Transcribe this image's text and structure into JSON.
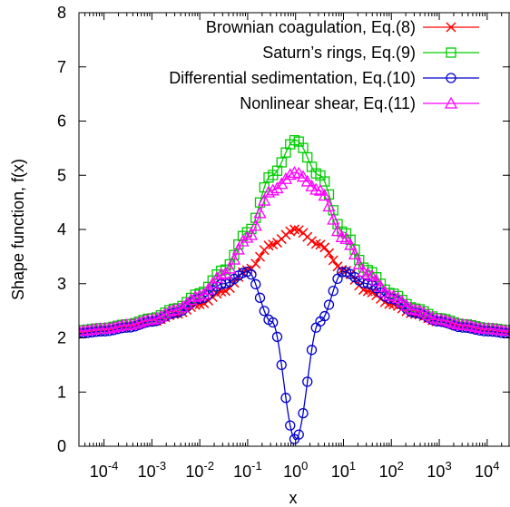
{
  "chart_data": {
    "type": "line",
    "xscale": "log",
    "xlabel": "x",
    "ylabel": "Shape function, f(x)",
    "xlim": [
      3e-05,
      30000
    ],
    "ylim": [
      0,
      8
    ],
    "x_ticks": [
      {
        "base": "10",
        "exp": "-4",
        "value": 0.0001
      },
      {
        "base": "10",
        "exp": "-3",
        "value": 0.001
      },
      {
        "base": "10",
        "exp": "-2",
        "value": 0.01
      },
      {
        "base": "10",
        "exp": "-1",
        "value": 0.1
      },
      {
        "base": "10",
        "exp": "0",
        "value": 1
      },
      {
        "base": "10",
        "exp": "1",
        "value": 10
      },
      {
        "base": "10",
        "exp": "2",
        "value": 100
      },
      {
        "base": "10",
        "exp": "3",
        "value": 1000
      },
      {
        "base": "10",
        "exp": "4",
        "value": 10000
      }
    ],
    "y_ticks": [
      "0",
      "1",
      "2",
      "3",
      "4",
      "5",
      "6",
      "7",
      "8"
    ],
    "legend_position": "top-right",
    "x": [
      3e-05,
      0.0001,
      0.00032,
      0.001,
      0.00316,
      0.01,
      0.03162,
      0.1,
      0.31623,
      1.0,
      3.16228,
      10.0,
      31.6228,
      100.0,
      316.228,
      1000.0,
      3162.28,
      10000.0,
      30000.0
    ],
    "series": [
      {
        "name": "Brownian coagulation, Eq.(8)",
        "color": "#ff0000",
        "marker": "x",
        "values": [
          2.12,
          2.16,
          2.22,
          2.3,
          2.44,
          2.62,
          2.86,
          3.25,
          3.72,
          4.0,
          3.72,
          3.25,
          2.86,
          2.62,
          2.44,
          2.3,
          2.22,
          2.16,
          2.12
        ]
      },
      {
        "name": "Saturn’s rings, Eq.(9)",
        "color": "#00cc00",
        "marker": "square",
        "values": [
          2.14,
          2.18,
          2.25,
          2.36,
          2.54,
          2.82,
          3.25,
          3.95,
          5.0,
          5.65,
          5.0,
          3.95,
          3.25,
          2.82,
          2.54,
          2.36,
          2.25,
          2.18,
          2.14
        ]
      },
      {
        "name": "Differential sedimentation, Eq.(10)",
        "color": "#0000cc",
        "marker": "circle",
        "values": [
          2.08,
          2.12,
          2.19,
          2.3,
          2.46,
          2.72,
          3.0,
          3.22,
          2.3,
          0.12,
          2.3,
          3.22,
          3.0,
          2.72,
          2.46,
          2.3,
          2.19,
          2.12,
          2.08
        ]
      },
      {
        "name": "Nonlinear shear, Eq.(11)",
        "color": "#ff00ff",
        "marker": "triangle",
        "values": [
          2.13,
          2.17,
          2.24,
          2.34,
          2.52,
          2.78,
          3.18,
          3.85,
          4.72,
          5.05,
          4.72,
          3.85,
          3.18,
          2.78,
          2.52,
          2.34,
          2.24,
          2.17,
          2.13
        ]
      }
    ]
  }
}
